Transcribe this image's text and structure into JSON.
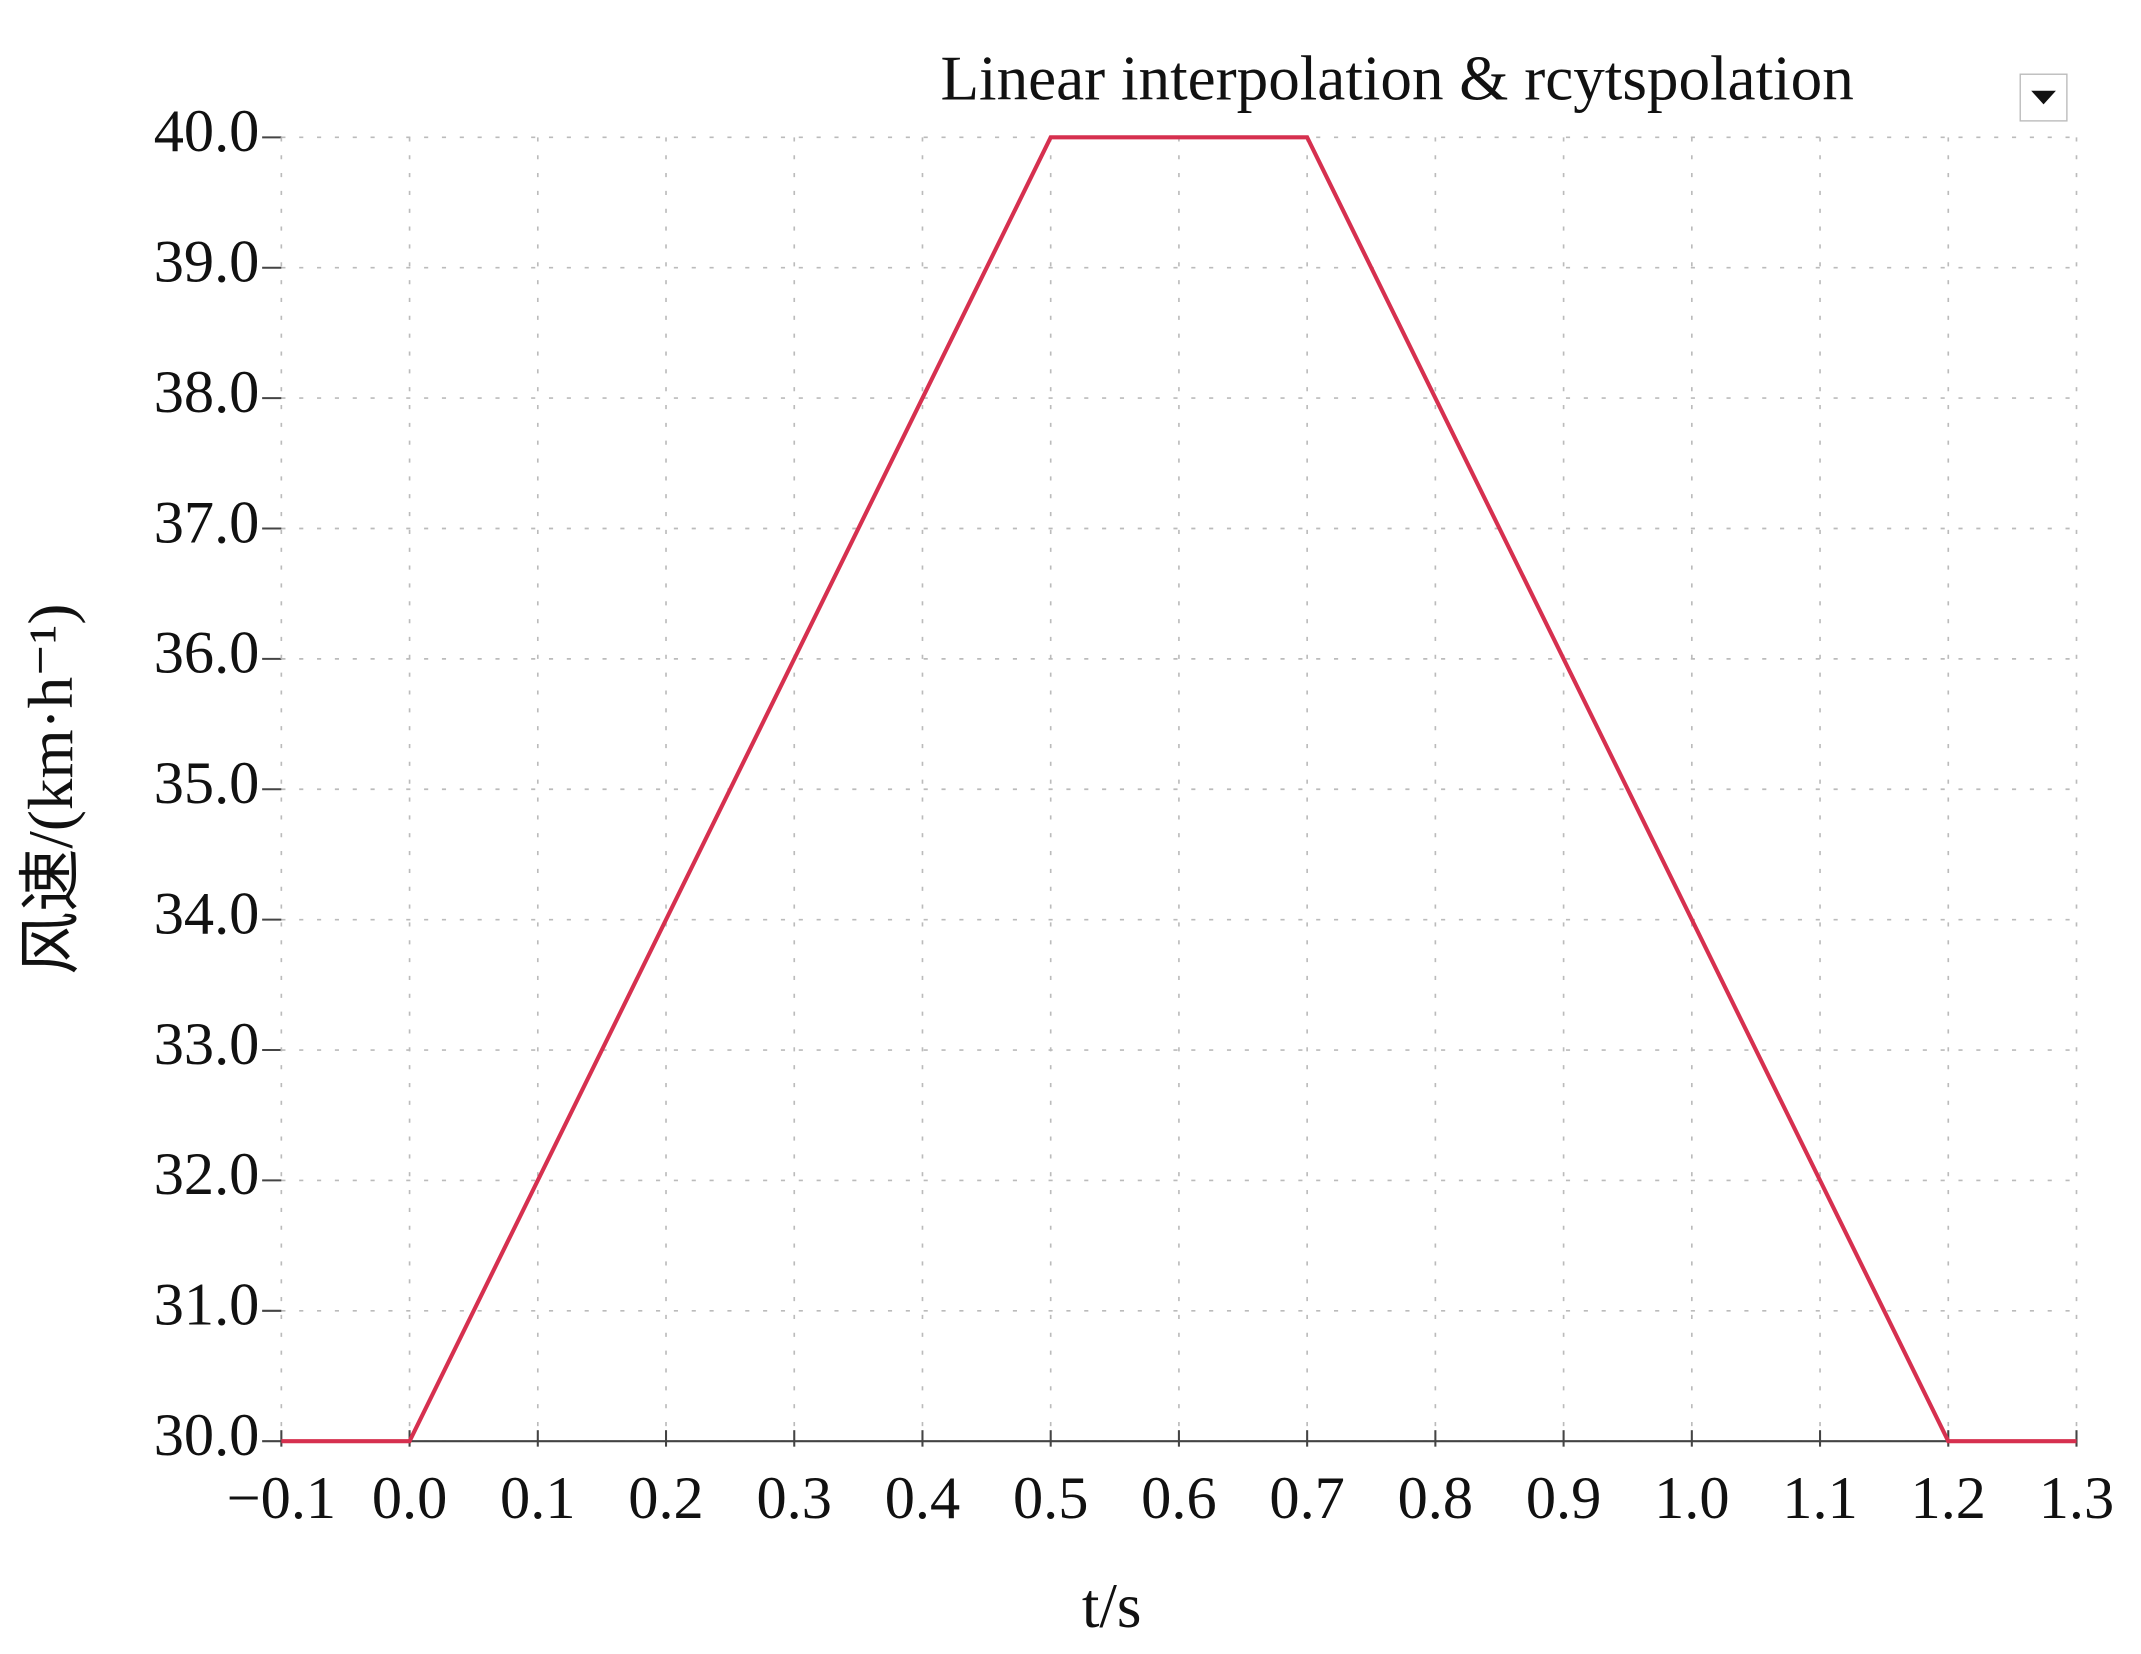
{
  "chart_data": {
    "type": "line",
    "xlabel": "t/s",
    "ylabel": "风速/(km·h⁻¹)",
    "x": [
      -0.1,
      0,
      0.5,
      0.7,
      1.2,
      1.3
    ],
    "series": [
      {
        "name": "Linear interpolation & rcytspolation",
        "color": "#d6304f",
        "values": [
          30,
          30,
          40,
          40,
          30,
          30
        ]
      }
    ],
    "xlim": [
      -0.1,
      1.3
    ],
    "xticks": [
      {
        "value": -0.1,
        "label": "−0.1"
      },
      {
        "value": 0,
        "label": "0.0"
      },
      0.1,
      0.2,
      0.3,
      0.4,
      0.5,
      0.6,
      0.7,
      0.8,
      0.9,
      {
        "value": 1,
        "label": "1.0"
      },
      1.1,
      1.2,
      1.3
    ],
    "ylim": [
      30,
      40
    ],
    "yticks": [
      {
        "value": 30,
        "label": "30.0"
      },
      {
        "value": 31,
        "label": "31.0"
      },
      {
        "value": 32,
        "label": "32.0"
      },
      {
        "value": 33,
        "label": "33.0"
      },
      {
        "value": 34,
        "label": "34.0"
      },
      {
        "value": 35,
        "label": "35.0"
      },
      {
        "value": 36,
        "label": "36.0"
      },
      {
        "value": 37,
        "label": "37.0"
      },
      {
        "value": 38,
        "label": "38.0"
      },
      {
        "value": 39,
        "label": "39.0"
      },
      {
        "value": 40,
        "label": "40.0"
      }
    ],
    "grid": true
  }
}
